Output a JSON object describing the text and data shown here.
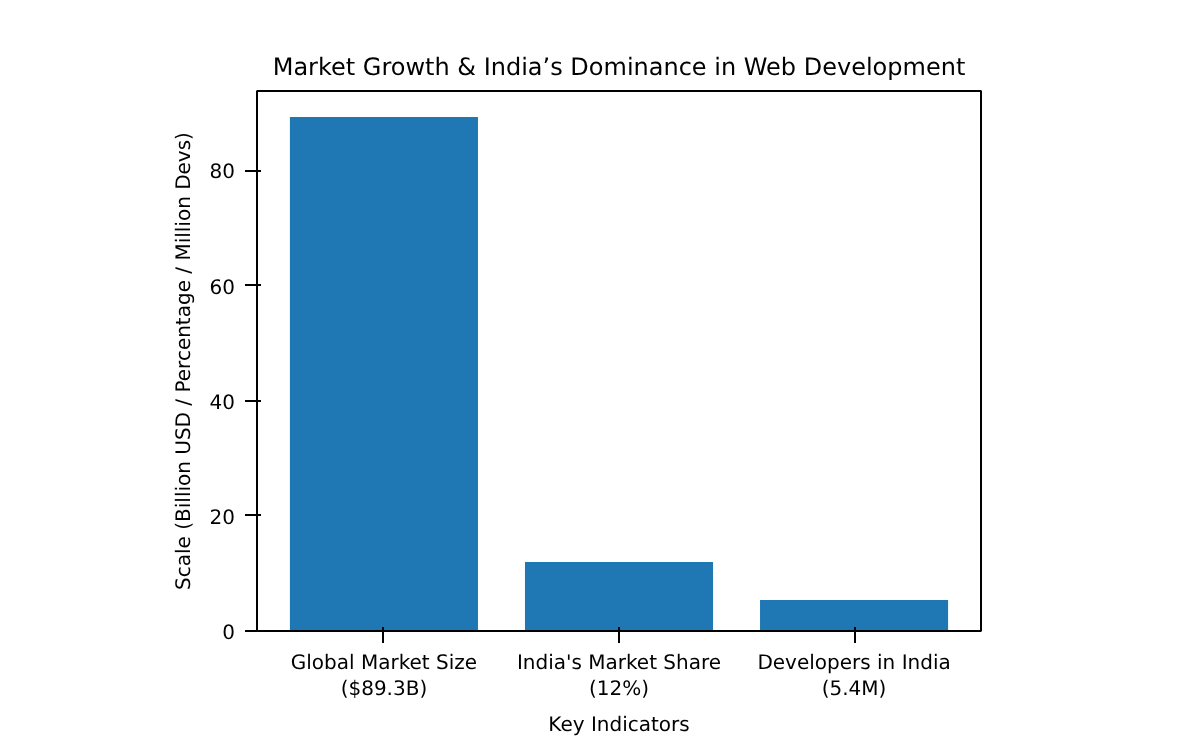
{
  "chart_data": {
    "type": "bar",
    "title": "Market Growth & India’s Dominance in Web Development",
    "categories": [
      "Global Market Size\n($89.3B)",
      "India's Market Share\n(12%)",
      "Developers in India\n(5.4M)"
    ],
    "values": [
      89.3,
      12,
      5.4
    ],
    "color": "#1f77b4",
    "xlabel": "Key Indicators",
    "ylabel": "Scale (Billion USD / Percentage / Million Devs)",
    "ylim": [
      0,
      93.8
    ],
    "yticks": [
      0,
      20,
      40,
      60,
      80
    ],
    "grid": false
  }
}
